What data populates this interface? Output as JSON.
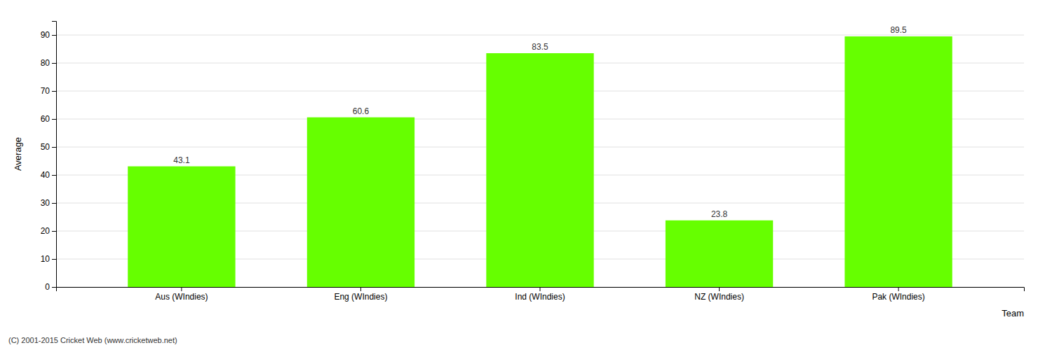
{
  "chart_data": {
    "type": "bar",
    "categories": [
      "Aus (WIndies)",
      "Eng (WIndies)",
      "Ind (WIndies)",
      "NZ (WIndies)",
      "Pak (WIndies)"
    ],
    "values": [
      43.1,
      60.6,
      83.5,
      23.8,
      89.5
    ],
    "color": "#66ff00",
    "xlabel": "Team",
    "ylabel": "Average",
    "ylim": [
      0,
      95
    ],
    "yticks": [
      0,
      10,
      20,
      30,
      40,
      50,
      60,
      70,
      80,
      90
    ],
    "grid": true,
    "data_labels": true,
    "annotations": [
      "(C) 2001-2015 Cricket Web (www.cricketweb.net)"
    ]
  }
}
